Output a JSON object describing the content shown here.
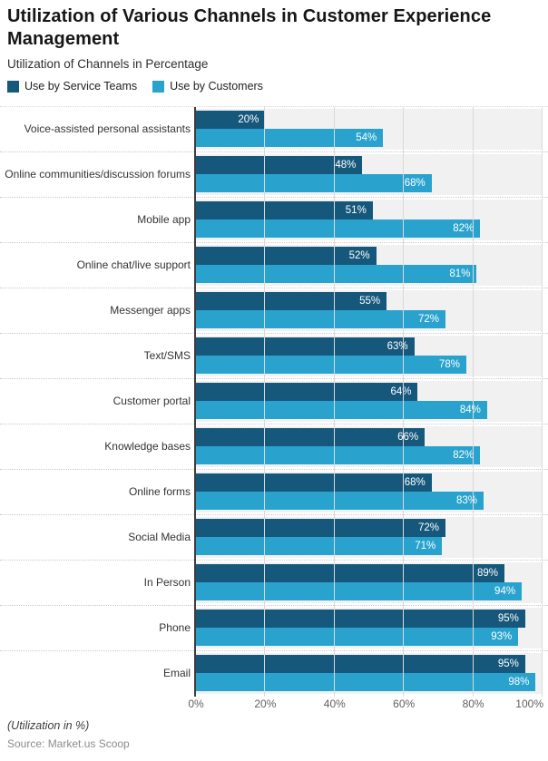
{
  "header": {
    "title": "Utilization of Various Channels in Customer Experience Management",
    "subtitle": "Utilization of Channels in Percentage"
  },
  "legend": [
    {
      "label": "Use by Service Teams",
      "color": "#15587C"
    },
    {
      "label": "Use by Customers",
      "color": "#29A3CE"
    }
  ],
  "chart_data": {
    "type": "bar",
    "orientation": "horizontal",
    "title": "Utilization of Various Channels in Customer Experience Management",
    "subtitle": "Utilization of Channels in Percentage",
    "categories": [
      "Voice-assisted personal assistants",
      "Online communities/discussion forums",
      "Mobile app",
      "Online chat/live support",
      "Messenger apps",
      "Text/SMS",
      "Customer portal",
      "Knowledge bases",
      "Online forms",
      "Social Media",
      "In Person",
      "Phone",
      "Email"
    ],
    "series": [
      {
        "name": "Use by Service Teams",
        "color": "#15587C",
        "values": [
          20,
          48,
          51,
          52,
          55,
          63,
          64,
          66,
          68,
          72,
          89,
          95,
          95
        ]
      },
      {
        "name": "Use by Customers",
        "color": "#29A3CE",
        "values": [
          54,
          68,
          82,
          81,
          72,
          78,
          84,
          82,
          83,
          71,
          94,
          93,
          98
        ]
      }
    ],
    "value_suffix": "%",
    "x_axis": {
      "min": 0,
      "max": 100,
      "ticks": [
        "0%",
        "20%",
        "40%",
        "60%",
        "80%",
        "100%"
      ]
    },
    "grid": true,
    "legend_position": "top",
    "band_color": "#F1F1F2",
    "grid_color": "#D9D9D9"
  },
  "footer": {
    "note": "(Utilization in %)",
    "source": "Source: Market.us Scoop"
  }
}
